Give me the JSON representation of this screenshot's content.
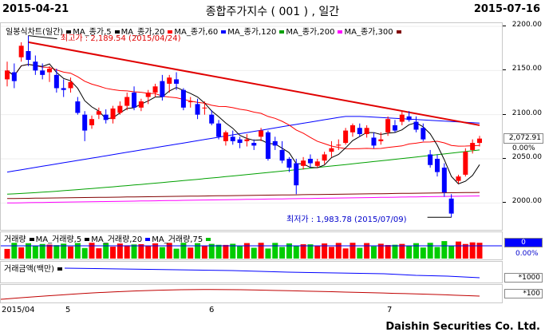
{
  "header": {
    "start_date": "2015-04-21",
    "end_date": "2015-07-16",
    "title": "종합주가지수 ( 001 ) , 일간"
  },
  "price_panel": {
    "legend": [
      {
        "label": "일봉식차트(일간)",
        "color": "#000000"
      },
      {
        "label": "MA_종가,5",
        "color": "#000000"
      },
      {
        "label": "MA_종가,20",
        "color": "#ff0000"
      },
      {
        "label": "MA_종가,60",
        "color": "#0000ff"
      },
      {
        "label": "MA_종가,120",
        "color": "#00a000"
      },
      {
        "label": "MA_종가,200",
        "color": "#ff00ff"
      },
      {
        "label": "MA_종가,300",
        "color": "#800000"
      }
    ],
    "high_annotation": "최고가 : 2,189.54 (2015/04/24)",
    "low_annotation": "최저가 : 1,983.78 (2015/07/09)",
    "yaxis_ticks": [
      "2200.00",
      "2150.00",
      "2100.00",
      "2050.00",
      "2000.00"
    ],
    "last_value": "2,072.91",
    "change_pct": "0.00%"
  },
  "volume_panel": {
    "legend": [
      {
        "label": "거래량",
        "color": "#000000"
      },
      {
        "label": "MA_거래량,5",
        "color": "#000000"
      },
      {
        "label": "MA_거래량,20",
        "color": "#0000ff"
      },
      {
        "label": "MA_거래량,75",
        "color": "#00c000"
      }
    ],
    "value": "0",
    "change_pct": "0.00%"
  },
  "amount_panel": {
    "legend": [
      {
        "label": "거래금액(백만)",
        "color": "#000000"
      }
    ],
    "scale": "*1000"
  },
  "bottom_panel": {
    "scale": "*100"
  },
  "xaxis": {
    "labels": [
      "2015/04",
      "5",
      "6",
      "7"
    ]
  },
  "footer": {
    "company": "Daishin Securities Co. Ltd."
  },
  "colors": {
    "up": "#ff0000",
    "down": "#0000ff",
    "trendline": "#e00000"
  },
  "chart_data": {
    "type": "candlestick",
    "ylim": [
      1975,
      2200
    ],
    "candles": [
      {
        "o": 2140,
        "h": 2160,
        "l": 2132,
        "c": 2150
      },
      {
        "o": 2148,
        "h": 2158,
        "l": 2130,
        "c": 2138
      },
      {
        "o": 2165,
        "h": 2182,
        "l": 2160,
        "c": 2178
      },
      {
        "o": 2172,
        "h": 2189.54,
        "l": 2155,
        "c": 2162
      },
      {
        "o": 2160,
        "h": 2167,
        "l": 2145,
        "c": 2150
      },
      {
        "o": 2150,
        "h": 2158,
        "l": 2140,
        "c": 2145
      },
      {
        "o": 2148,
        "h": 2155,
        "l": 2137,
        "c": 2152
      },
      {
        "o": 2145,
        "h": 2152,
        "l": 2125,
        "c": 2130
      },
      {
        "o": 2130,
        "h": 2140,
        "l": 2120,
        "c": 2128
      },
      {
        "o": 2130,
        "h": 2142,
        "l": 2125,
        "c": 2137
      },
      {
        "o": 2115,
        "h": 2120,
        "l": 2100,
        "c": 2102
      },
      {
        "o": 2100,
        "h": 2104,
        "l": 2070,
        "c": 2082
      },
      {
        "o": 2088,
        "h": 2099,
        "l": 2084,
        "c": 2095
      },
      {
        "o": 2100,
        "h": 2108,
        "l": 2095,
        "c": 2104
      },
      {
        "o": 2100,
        "h": 2106,
        "l": 2090,
        "c": 2094
      },
      {
        "o": 2095,
        "h": 2110,
        "l": 2090,
        "c": 2107
      },
      {
        "o": 2102,
        "h": 2115,
        "l": 2100,
        "c": 2110
      },
      {
        "o": 2110,
        "h": 2125,
        "l": 2105,
        "c": 2120
      },
      {
        "o": 2125,
        "h": 2132,
        "l": 2105,
        "c": 2108
      },
      {
        "o": 2108,
        "h": 2118,
        "l": 2104,
        "c": 2115
      },
      {
        "o": 2120,
        "h": 2128,
        "l": 2112,
        "c": 2125
      },
      {
        "o": 2125,
        "h": 2135,
        "l": 2120,
        "c": 2132
      },
      {
        "o": 2138,
        "h": 2145,
        "l": 2116,
        "c": 2120
      },
      {
        "o": 2135,
        "h": 2145,
        "l": 2125,
        "c": 2142
      },
      {
        "o": 2140,
        "h": 2148,
        "l": 2128,
        "c": 2135
      },
      {
        "o": 2128,
        "h": 2130,
        "l": 2105,
        "c": 2108
      },
      {
        "o": 2115,
        "h": 2120,
        "l": 2108,
        "c": 2115
      },
      {
        "o": 2112,
        "h": 2118,
        "l": 2095,
        "c": 2100
      },
      {
        "o": 2108,
        "h": 2115,
        "l": 2100,
        "c": 2108
      },
      {
        "o": 2100,
        "h": 2105,
        "l": 2088,
        "c": 2090
      },
      {
        "o": 2090,
        "h": 2094,
        "l": 2072,
        "c": 2075
      },
      {
        "o": 2070,
        "h": 2082,
        "l": 2065,
        "c": 2080
      },
      {
        "o": 2075,
        "h": 2082,
        "l": 2066,
        "c": 2070
      },
      {
        "o": 2072,
        "h": 2075,
        "l": 2062,
        "c": 2068
      },
      {
        "o": 2070,
        "h": 2078,
        "l": 2064,
        "c": 2072
      },
      {
        "o": 2068,
        "h": 2072,
        "l": 2060,
        "c": 2065
      },
      {
        "o": 2075,
        "h": 2085,
        "l": 2070,
        "c": 2082
      },
      {
        "o": 2080,
        "h": 2082,
        "l": 2048,
        "c": 2050
      },
      {
        "o": 2070,
        "h": 2075,
        "l": 2060,
        "c": 2065
      },
      {
        "o": 2060,
        "h": 2070,
        "l": 2045,
        "c": 2048
      },
      {
        "o": 2050,
        "h": 2052,
        "l": 2035,
        "c": 2040
      },
      {
        "o": 2045,
        "h": 2050,
        "l": 2010,
        "c": 2020
      },
      {
        "o": 2042,
        "h": 2052,
        "l": 2038,
        "c": 2048
      },
      {
        "o": 2050,
        "h": 2055,
        "l": 2040,
        "c": 2045
      },
      {
        "o": 2042,
        "h": 2050,
        "l": 2040,
        "c": 2047
      },
      {
        "o": 2048,
        "h": 2058,
        "l": 2044,
        "c": 2055
      },
      {
        "o": 2058,
        "h": 2070,
        "l": 2052,
        "c": 2062
      },
      {
        "o": 2065,
        "h": 2072,
        "l": 2060,
        "c": 2066
      },
      {
        "o": 2068,
        "h": 2085,
        "l": 2066,
        "c": 2082
      },
      {
        "o": 2080,
        "h": 2090,
        "l": 2075,
        "c": 2088
      },
      {
        "o": 2085,
        "h": 2090,
        "l": 2075,
        "c": 2078
      },
      {
        "o": 2078,
        "h": 2088,
        "l": 2074,
        "c": 2085
      },
      {
        "o": 2074,
        "h": 2080,
        "l": 2062,
        "c": 2065
      },
      {
        "o": 2070,
        "h": 2080,
        "l": 2066,
        "c": 2072
      },
      {
        "o": 2080,
        "h": 2098,
        "l": 2076,
        "c": 2095
      },
      {
        "o": 2088,
        "h": 2094,
        "l": 2080,
        "c": 2082
      },
      {
        "o": 2092,
        "h": 2104,
        "l": 2088,
        "c": 2100
      },
      {
        "o": 2098,
        "h": 2104,
        "l": 2092,
        "c": 2094
      },
      {
        "o": 2092,
        "h": 2098,
        "l": 2080,
        "c": 2083
      },
      {
        "o": 2085,
        "h": 2090,
        "l": 2070,
        "c": 2072
      },
      {
        "o": 2055,
        "h": 2060,
        "l": 2040,
        "c": 2043
      },
      {
        "o": 2050,
        "h": 2055,
        "l": 2030,
        "c": 2035
      },
      {
        "o": 2040,
        "h": 2045,
        "l": 2007,
        "c": 2012
      },
      {
        "o": 2005,
        "h": 2010,
        "l": 1983.78,
        "c": 1988
      },
      {
        "o": 2025,
        "h": 2032,
        "l": 2022,
        "c": 2030
      },
      {
        "o": 2032,
        "h": 2062,
        "l": 2030,
        "c": 2058
      },
      {
        "o": 2060,
        "h": 2072,
        "l": 2056,
        "c": 2068
      },
      {
        "o": 2068,
        "h": 2076,
        "l": 2064,
        "c": 2072.91
      }
    ]
  }
}
